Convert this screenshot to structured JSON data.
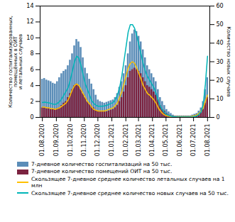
{
  "chart_data": {
    "type": "bar",
    "ylabel": "Количество госпитализированных,\nпомещённых в ОИТ\nи летальных случаев",
    "y2label": "Количество новых случаев",
    "x": [
      0,
      4.753,
      9.506,
      14.26,
      19.013,
      23.766,
      28.519,
      33.273,
      38.026,
      42.779,
      47.532,
      52.286,
      57.039,
      61.792,
      66.545,
      71.299,
      76.052,
      80.805,
      85.558,
      90.312,
      95.065,
      99.818,
      104.571,
      109.325,
      114.078,
      118.831,
      123.584,
      128.338,
      133.091,
      137.844,
      142.597,
      147.351,
      152.104,
      156.857,
      161.61,
      166.364,
      171.117,
      175.87,
      180.623,
      185.377,
      190.13,
      194.883,
      199.636,
      204.39,
      209.143,
      213.896,
      218.649,
      223.403,
      228.156,
      232.909,
      237.662,
      242.416,
      247.169,
      251.922,
      256.675,
      261.429,
      266.182,
      270.935,
      275.688,
      280.442,
      285.195,
      289.948,
      294.701,
      299.455,
      304.208,
      308.961,
      313.714,
      318.468,
      323.221,
      327.974,
      332.727,
      337.481,
      342.234,
      346.987,
      351.74,
      356.494,
      361.247,
      366
    ],
    "xlim": [
      -5,
      371
    ],
    "xticks": [
      {
        "value": 0,
        "label": "01.08.2020"
      },
      {
        "value": 31,
        "label": "01.09.2020"
      },
      {
        "value": 62,
        "label": "01.10.2020"
      },
      {
        "value": 93,
        "label": "01.11.2020"
      },
      {
        "value": 123,
        "label": "01.12.2020"
      },
      {
        "value": 154,
        "label": "01.01.2021"
      },
      {
        "value": 185,
        "label": "01.02.2021"
      },
      {
        "value": 213,
        "label": "01.03.2021"
      },
      {
        "value": 244,
        "label": "01.04.2021"
      },
      {
        "value": 274,
        "label": "01.05.2021"
      },
      {
        "value": 305,
        "label": "01.06.2021"
      },
      {
        "value": 335,
        "label": "01.07.2021"
      },
      {
        "value": 366,
        "label": "01.08.2021"
      }
    ],
    "ylim": [
      0,
      14
    ],
    "yticks": [
      0,
      2,
      4,
      6,
      8,
      10,
      12,
      14
    ],
    "y2lim": [
      0,
      60
    ],
    "y2ticks": [
      0,
      10,
      20,
      30,
      40,
      50,
      60
    ],
    "grid": false,
    "stacked": false,
    "legend": "bottom left",
    "series": [
      {
        "name": "7-дневное количество госпитализаций на 50 тыс.",
        "type": "bar",
        "color": "#5B8DB8",
        "values": [
          4.8,
          4.9,
          4.7,
          4.6,
          4.5,
          4.3,
          4.2,
          4.5,
          5.0,
          5.5,
          5.8,
          6.0,
          6.5,
          7.2,
          8.0,
          9.0,
          9.8,
          9.5,
          8.8,
          7.5,
          6.2,
          5.5,
          4.8,
          4.2,
          3.5,
          2.8,
          2.2,
          2.0,
          1.9,
          1.8,
          1.9,
          2.0,
          2.1,
          2.2,
          2.5,
          3.0,
          3.8,
          4.5,
          5.5,
          6.5,
          8.0,
          9.5,
          10.5,
          11.0,
          10.8,
          10.2,
          9.5,
          8.5,
          7.5,
          6.5,
          6.0,
          5.5,
          5.0,
          4.5,
          3.5,
          2.5,
          2.0,
          1.5,
          1.0,
          0.7,
          0.5,
          0.3,
          0.2,
          0.2,
          0.2,
          0.2,
          0.2,
          0.2,
          0.2,
          0.2,
          0.3,
          0.4,
          0.5,
          0.8,
          1.2,
          2.0,
          3.5,
          5.0
        ]
      },
      {
        "name": "7-дневное количество помещений ОИТ на 50 тыс.",
        "type": "bar",
        "color": "#7B2340",
        "values": [
          1.2,
          1.2,
          1.1,
          1.1,
          1.0,
          1.0,
          1.0,
          1.1,
          1.2,
          1.5,
          1.8,
          2.0,
          2.5,
          3.0,
          3.5,
          4.0,
          4.2,
          4.0,
          3.5,
          3.0,
          2.5,
          2.0,
          1.7,
          1.4,
          1.2,
          0.9,
          0.8,
          0.7,
          0.7,
          0.7,
          0.7,
          0.8,
          0.9,
          1.0,
          1.2,
          1.5,
          2.0,
          2.5,
          3.2,
          4.0,
          5.0,
          5.8,
          6.0,
          6.2,
          6.0,
          5.8,
          5.5,
          5.0,
          4.5,
          4.0,
          3.8,
          3.5,
          3.2,
          2.8,
          2.2,
          1.5,
          1.0,
          0.8,
          0.5,
          0.3,
          0.2,
          0.15,
          0.1,
          0.1,
          0.1,
          0.1,
          0.1,
          0.1,
          0.1,
          0.1,
          0.15,
          0.2,
          0.3,
          0.4,
          0.6,
          1.0,
          1.8,
          2.5
        ]
      },
      {
        "name": "Скользящее 7-дневное среднее количество летальных случаев на 1 млн",
        "type": "line",
        "color": "#FFC000",
        "values": [
          1.3,
          1.3,
          1.2,
          1.2,
          1.1,
          1.1,
          1.0,
          1.1,
          1.2,
          1.4,
          1.6,
          1.8,
          2.2,
          2.8,
          3.5,
          4.0,
          4.2,
          4.0,
          3.5,
          3.0,
          2.5,
          2.0,
          1.7,
          1.3,
          1.0,
          0.9,
          0.8,
          0.8,
          0.8,
          0.8,
          0.9,
          1.0,
          1.1,
          1.2,
          1.5,
          1.8,
          2.5,
          3.2,
          4.2,
          5.2,
          6.2,
          6.8,
          7.0,
          6.8,
          6.2,
          5.5,
          4.8,
          4.0,
          3.5,
          3.0,
          2.8,
          2.5,
          2.2,
          1.8,
          1.2,
          0.8,
          0.5,
          0.3,
          0.2,
          0.15,
          0.1,
          0.1,
          0.1,
          0.1,
          0.1,
          0.1,
          0.1,
          0.1,
          0.1,
          0.1,
          0.15,
          0.2,
          0.3,
          0.5,
          0.8,
          1.2,
          2.0,
          2.8
        ]
      },
      {
        "name": "Скользящее 7-дневное среднее количество новых случаев на 50 тыс.",
        "type": "line",
        "axis": "y2",
        "color": "#00B5B8",
        "values": [
          8.0,
          8.2,
          8.0,
          7.8,
          7.5,
          7.2,
          7.0,
          7.5,
          8.5,
          10.0,
          12.0,
          14.0,
          16.0,
          20.0,
          25.0,
          30.0,
          33.0,
          32.0,
          28.0,
          23.0,
          18.0,
          15.0,
          12.0,
          9.0,
          7.5,
          6.5,
          6.0,
          6.0,
          6.0,
          6.2,
          6.5,
          7.0,
          7.5,
          8.0,
          9.5,
          12.0,
          16.0,
          22.0,
          30.0,
          38.0,
          46.0,
          50.0,
          50.0,
          48.0,
          44.0,
          39.0,
          34.0,
          29.0,
          25.0,
          22.0,
          20.0,
          18.0,
          16.0,
          13.0,
          9.0,
          6.0,
          4.0,
          2.5,
          1.5,
          1.0,
          0.7,
          0.4,
          0.3,
          0.2,
          0.2,
          0.2,
          0.2,
          0.2,
          0.2,
          0.2,
          0.3,
          0.5,
          0.8,
          1.5,
          3.0,
          7.0,
          18.0,
          33.0
        ]
      }
    ]
  }
}
